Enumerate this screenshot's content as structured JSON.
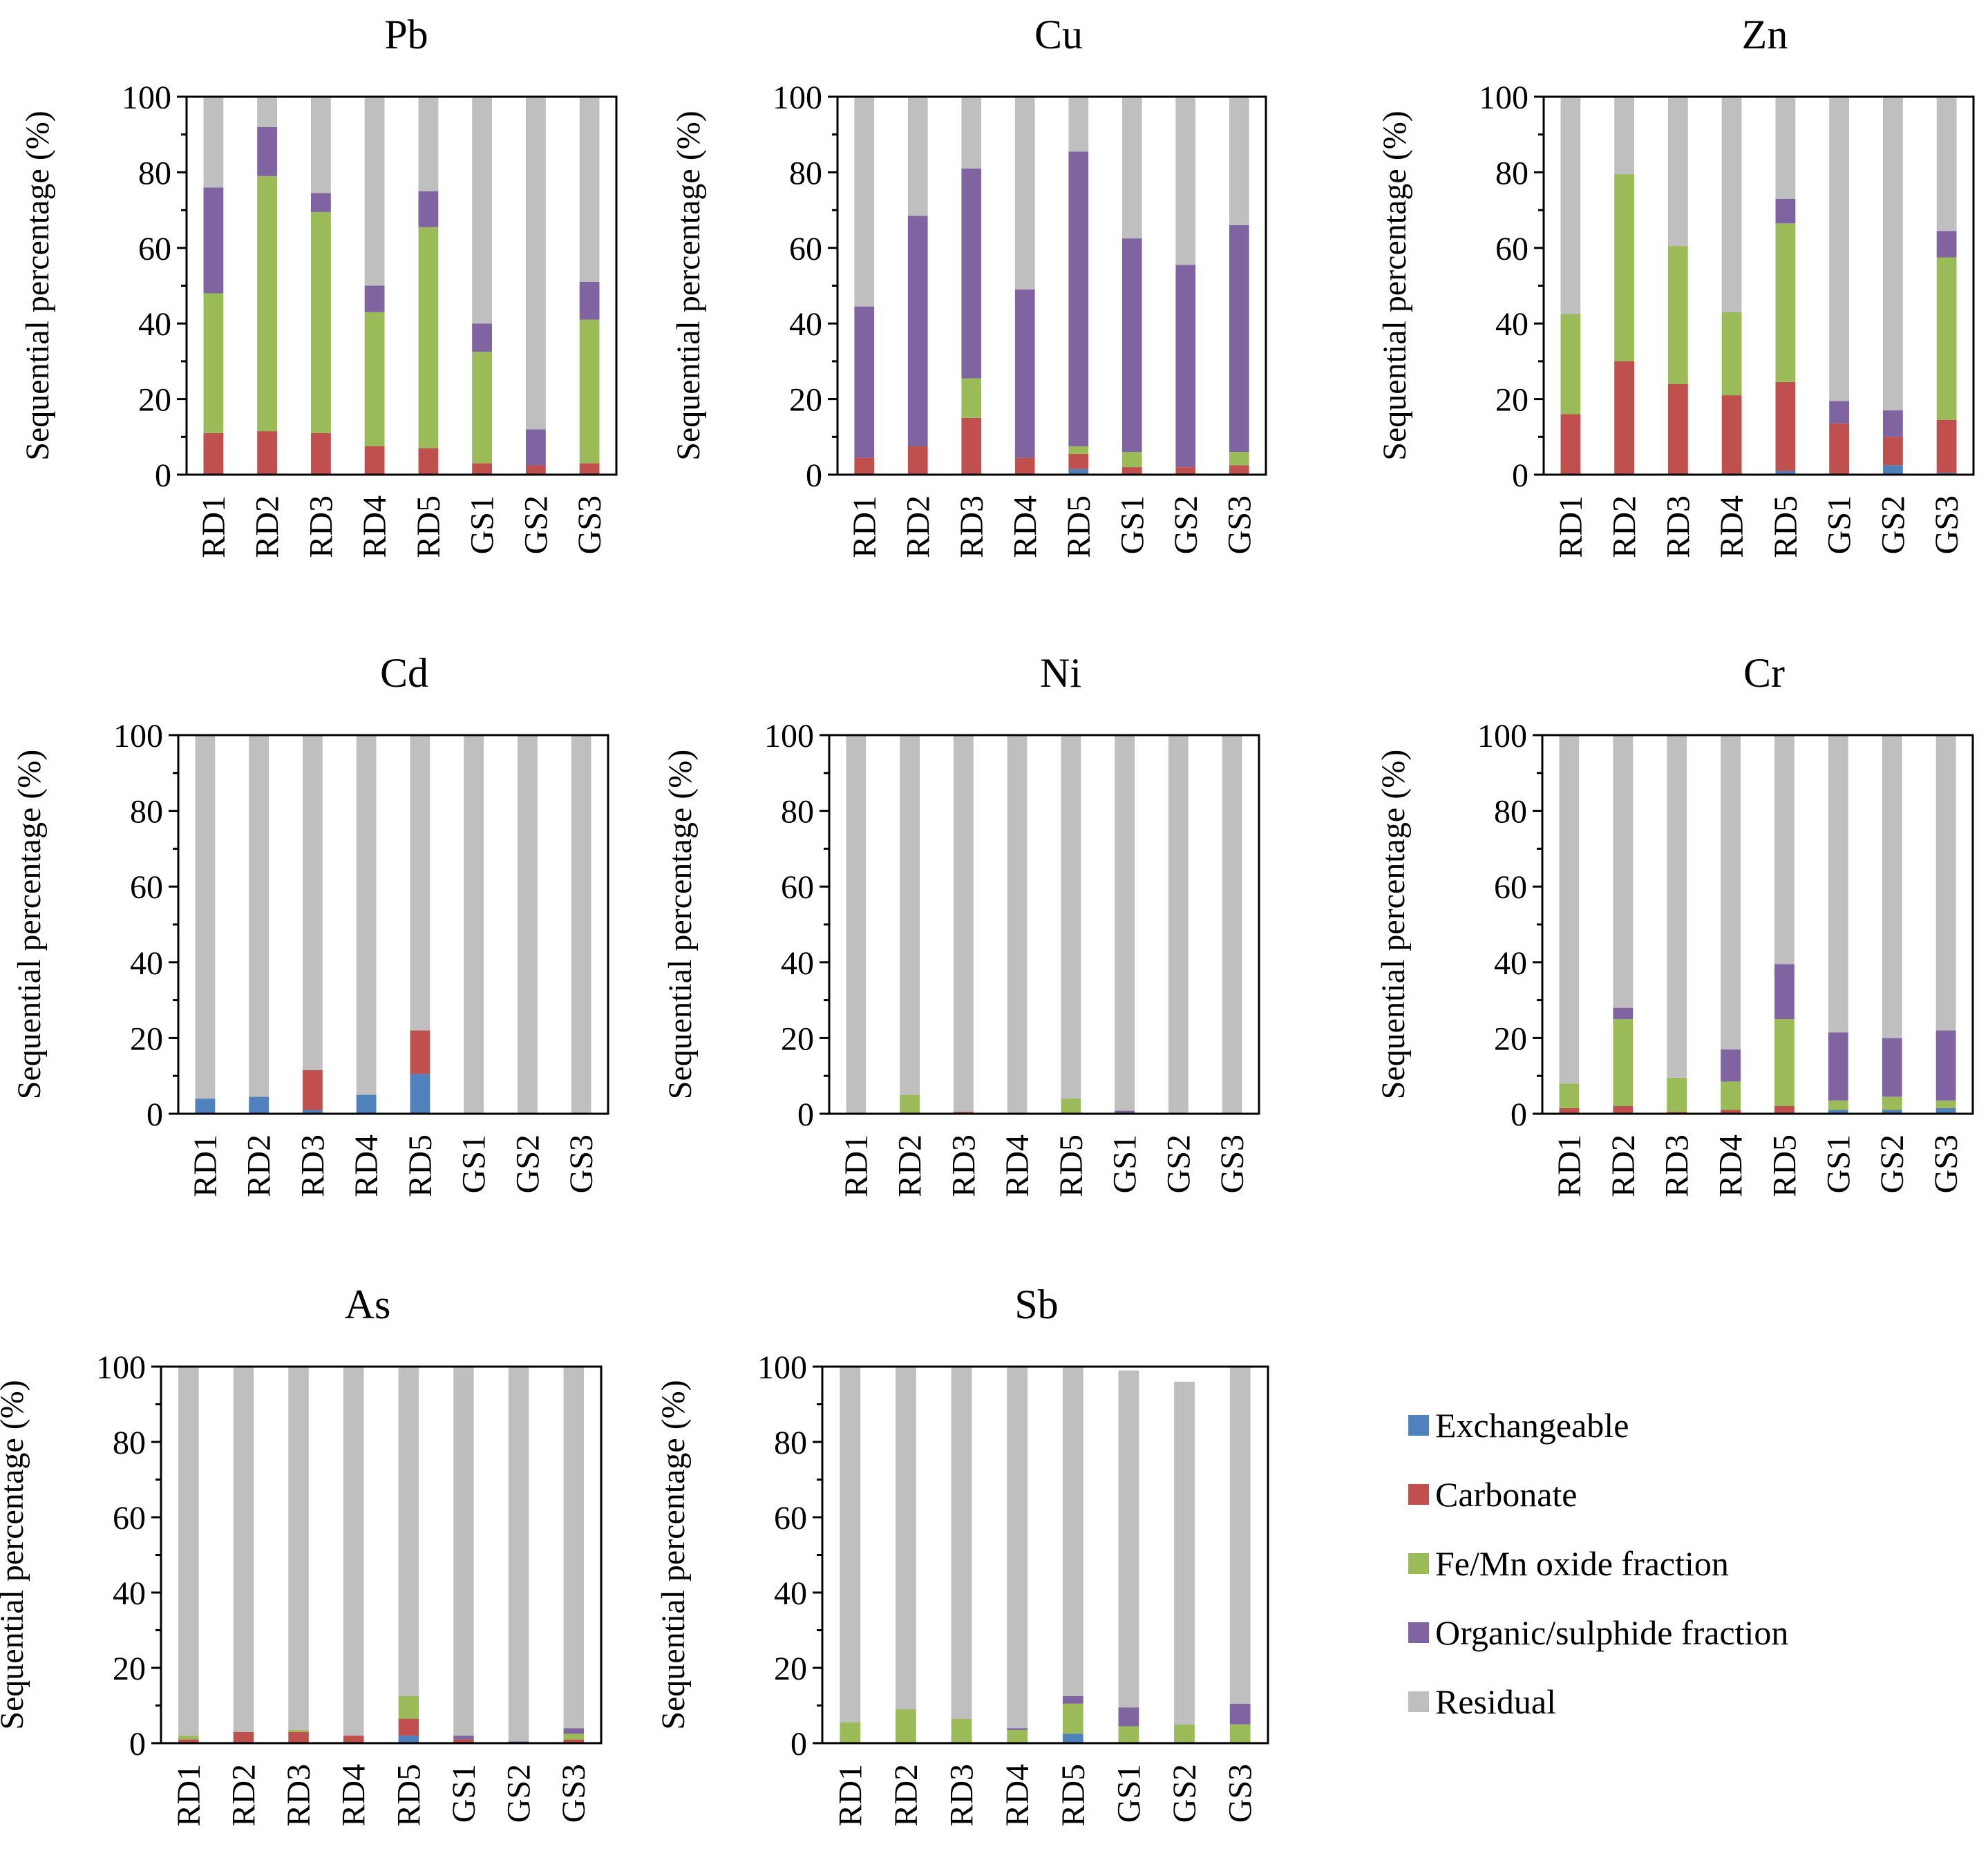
{
  "chart_data": {
    "type": "stacked-bar",
    "categories": [
      "RD1",
      "RD2",
      "RD3",
      "RD4",
      "RD5",
      "GS1",
      "GS2",
      "GS3"
    ],
    "ylabel": "Sequential  percentage  (%)",
    "ylim": [
      0,
      100
    ],
    "yticks": [
      0,
      20,
      40,
      60,
      80,
      100
    ],
    "fractions": [
      {
        "name": "Exchangeable",
        "color": "#4f81bd"
      },
      {
        "name": "Carbonate",
        "color": "#c0504d"
      },
      {
        "name": "Fe/Mn oxide fraction",
        "color": "#9bbb59"
      },
      {
        "name": "Organic/sulphide fraction",
        "color": "#8064a2"
      },
      {
        "name": "Residual",
        "color": "#bfbfbf"
      }
    ],
    "legend": {
      "placement": "bottom-right"
    },
    "panels": [
      {
        "title": "Pb",
        "series": {
          "Exchangeable": [
            0,
            0,
            0,
            0,
            0,
            0,
            0,
            0
          ],
          "Carbonate": [
            11,
            11.5,
            11,
            7.5,
            7,
            3,
            2.5,
            3
          ],
          "Fe/Mn oxide fraction": [
            37,
            67.5,
            58.5,
            35.5,
            58.5,
            29.5,
            0,
            38
          ],
          "Organic/sulphide fraction": [
            28,
            13,
            5,
            7,
            9.5,
            7.5,
            9.5,
            10
          ],
          "Residual": [
            24,
            8,
            25.5,
            50,
            25,
            60,
            88,
            49
          ]
        }
      },
      {
        "title": "Cu",
        "series": {
          "Exchangeable": [
            0,
            0,
            0,
            0,
            1.5,
            0,
            0,
            0
          ],
          "Carbonate": [
            4.5,
            7.5,
            15,
            4.5,
            4,
            2,
            2,
            2.5
          ],
          "Fe/Mn oxide fraction": [
            0,
            0,
            10.5,
            0,
            2,
            4,
            0,
            3.5
          ],
          "Organic/sulphide fraction": [
            40,
            61,
            55.5,
            44.5,
            78,
            56.5,
            53.5,
            60
          ],
          "Residual": [
            55.5,
            31.5,
            19,
            51,
            14.5,
            37.5,
            44.5,
            34
          ]
        }
      },
      {
        "title": "Zn",
        "series": {
          "Exchangeable": [
            0,
            0,
            0,
            0,
            1,
            0,
            2.5,
            0.5
          ],
          "Carbonate": [
            16,
            30,
            24,
            21,
            23.5,
            13.5,
            7.5,
            14
          ],
          "Fe/Mn oxide fraction": [
            26.5,
            49.5,
            36.5,
            22,
            42,
            0,
            0,
            43
          ],
          "Organic/sulphide fraction": [
            0,
            0,
            0,
            0,
            6.5,
            6,
            7,
            7
          ],
          "Residual": [
            57.5,
            20.5,
            39.5,
            57,
            27,
            80.5,
            83,
            35.5
          ]
        }
      },
      {
        "title": "Cd",
        "series": {
          "Exchangeable": [
            4,
            4.5,
            1,
            5,
            10.5,
            0,
            0,
            0
          ],
          "Carbonate": [
            0,
            0,
            10.5,
            0,
            11.5,
            0,
            0,
            0
          ],
          "Fe/Mn oxide fraction": [
            0,
            0,
            0,
            0,
            0,
            0,
            0,
            0
          ],
          "Organic/sulphide fraction": [
            0,
            0,
            0,
            0,
            0,
            0,
            0,
            0
          ],
          "Residual": [
            96,
            95.5,
            88.5,
            95,
            78,
            100,
            100,
            100
          ]
        }
      },
      {
        "title": "Ni",
        "series": {
          "Exchangeable": [
            0,
            0,
            0,
            0,
            0,
            0,
            0,
            0
          ],
          "Carbonate": [
            0,
            0,
            0.5,
            0,
            0,
            0,
            0,
            0
          ],
          "Fe/Mn oxide fraction": [
            0,
            5,
            0,
            0,
            4,
            0,
            0,
            0
          ],
          "Organic/sulphide fraction": [
            0,
            0,
            0,
            0,
            0,
            0.8,
            0,
            0
          ],
          "Residual": [
            100,
            95,
            99.5,
            100,
            96,
            99.2,
            100,
            100
          ]
        }
      },
      {
        "title": "Cr",
        "series": {
          "Exchangeable": [
            0,
            0,
            0,
            0,
            0,
            1,
            1,
            1.5
          ],
          "Carbonate": [
            1.5,
            2,
            0.5,
            1,
            2,
            0,
            0,
            0
          ],
          "Fe/Mn oxide fraction": [
            6.5,
            23,
            9,
            7.5,
            23,
            2.5,
            3.5,
            2
          ],
          "Organic/sulphide fraction": [
            0,
            3,
            0,
            8.5,
            14.5,
            18,
            15.5,
            18.5
          ],
          "Residual": [
            92,
            72,
            90.5,
            83,
            60.5,
            78.5,
            80,
            78
          ]
        }
      },
      {
        "title": "As",
        "series": {
          "Exchangeable": [
            0,
            0,
            0,
            0,
            2,
            0,
            0,
            0
          ],
          "Carbonate": [
            1,
            3,
            3,
            2,
            4.5,
            1,
            0,
            1
          ],
          "Fe/Mn oxide fraction": [
            1,
            0,
            0.5,
            0,
            6,
            0,
            0,
            1.5
          ],
          "Organic/sulphide fraction": [
            0,
            0,
            0,
            0,
            0,
            1,
            0.5,
            1.5
          ],
          "Residual": [
            98,
            97,
            96.5,
            98,
            87.5,
            98,
            99.5,
            96
          ]
        }
      },
      {
        "title": "Sb",
        "series": {
          "Exchangeable": [
            0,
            0,
            0,
            0,
            2.5,
            0,
            0,
            0
          ],
          "Carbonate": [
            0,
            0,
            0,
            0,
            0,
            0,
            0,
            0
          ],
          "Fe/Mn oxide fraction": [
            5.5,
            9,
            6.5,
            3.5,
            8,
            4.5,
            5,
            5
          ],
          "Organic/sulphide fraction": [
            0,
            0,
            0,
            0.5,
            2,
            5,
            0,
            5.5
          ],
          "Residual": [
            94.5,
            91,
            93.5,
            96,
            87.5,
            89.5,
            91,
            89.5
          ]
        }
      }
    ]
  }
}
